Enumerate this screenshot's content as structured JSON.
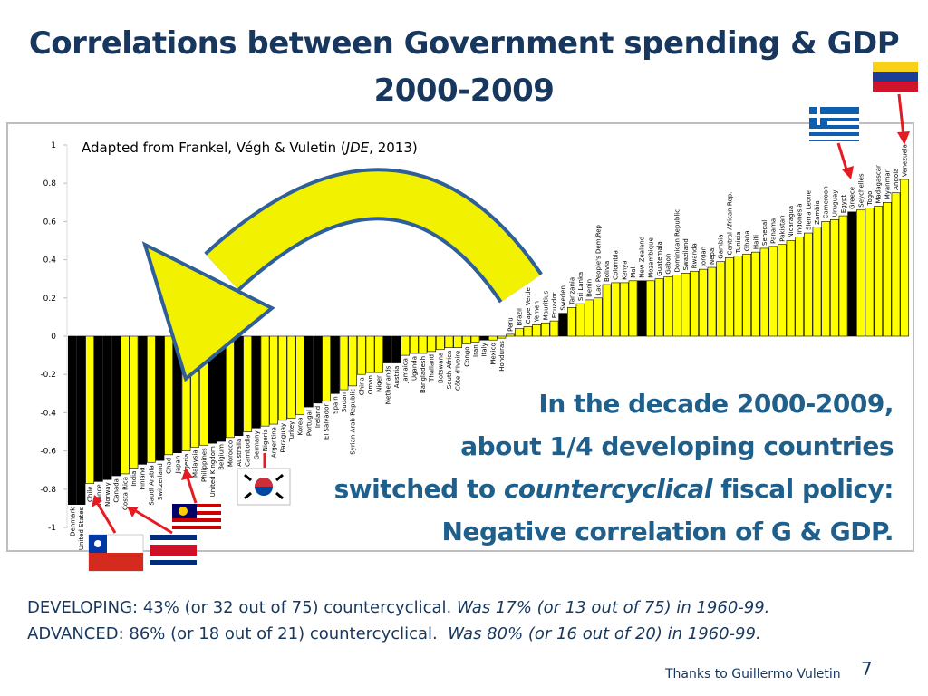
{
  "title": {
    "line1": "Correlations between Government spending & GDP",
    "line2": "2000-2009"
  },
  "source": {
    "pre": "Adapted from Frankel, Végh & Vuletin (",
    "em": "JDE",
    "post": ", 2013)"
  },
  "chart_data": {
    "type": "bar",
    "categories": [
      "Denmark",
      "United States",
      "Chile",
      "France",
      "Norway",
      "Canada",
      "Costa Rica",
      "India",
      "Finland",
      "Saudi Arabia",
      "Switzerland",
      "Chad",
      "Japan",
      "Algeria",
      "Malaysia",
      "Philippines",
      "United Kingdom",
      "Belgium",
      "Morocco",
      "Australia",
      "Cambodia",
      "Germany",
      "Nigeria",
      "Argentina",
      "Paraguay",
      "Turkey",
      "Korea",
      "Portugal",
      "Ireland",
      "El Salvador",
      "Spain",
      "Sudan",
      "Syrian Arab Republic",
      "China",
      "Oman",
      "Niger",
      "Netherlands",
      "Austria",
      "Jamaica",
      "Uganda",
      "Bangladesh",
      "Thailand",
      "Botswana",
      "South Africa",
      "Côte d'Ivoire",
      "Congo",
      "Iran",
      "Italy",
      "Mexico",
      "Honduras",
      "Peru",
      "Brazil",
      "Cape Verde",
      "Yemen",
      "Mauritius",
      "Ecuador",
      "Sweden",
      "Tanzania",
      "Sri Lanka",
      "Benin",
      "Lao People's Dem.Rep",
      "Bolivia",
      "Colombia",
      "Kenya",
      "Mali",
      "New Zealand",
      "Mozambique",
      "Guatemala",
      "Gabon",
      "Dominican Republic",
      "Swaziland",
      "Rwanda",
      "Jordan",
      "Nepal",
      "Gambia",
      "Central African Rep.",
      "Tunisia",
      "Ghana",
      "Haiti",
      "Senegal",
      "Panama",
      "Pakistan",
      "Nicaragua",
      "Indonesia",
      "Sierra Leone",
      "Zambia",
      "Cameroon",
      "Uruguay",
      "Egypt",
      "Greece",
      "Seychelles",
      "Togo",
      "Madagascar",
      "Myanmar",
      "Angola",
      "Venezuela"
    ],
    "values": [
      -0.88,
      -0.88,
      -0.77,
      -0.76,
      -0.75,
      -0.73,
      -0.72,
      -0.69,
      -0.67,
      -0.66,
      -0.65,
      -0.62,
      -0.61,
      -0.6,
      -0.58,
      -0.57,
      -0.56,
      -0.55,
      -0.53,
      -0.52,
      -0.5,
      -0.48,
      -0.47,
      -0.46,
      -0.44,
      -0.43,
      -0.41,
      -0.37,
      -0.35,
      -0.34,
      -0.3,
      -0.28,
      -0.26,
      -0.2,
      -0.19,
      -0.19,
      -0.14,
      -0.14,
      -0.1,
      -0.09,
      -0.09,
      -0.08,
      -0.07,
      -0.06,
      -0.06,
      -0.04,
      -0.03,
      -0.02,
      -0.02,
      -0.01,
      0.01,
      0.04,
      0.05,
      0.06,
      0.07,
      0.08,
      0.12,
      0.15,
      0.17,
      0.19,
      0.2,
      0.27,
      0.28,
      0.28,
      0.29,
      0.29,
      0.29,
      0.3,
      0.31,
      0.32,
      0.33,
      0.34,
      0.35,
      0.36,
      0.39,
      0.41,
      0.42,
      0.43,
      0.44,
      0.46,
      0.47,
      0.48,
      0.5,
      0.52,
      0.54,
      0.57,
      0.6,
      0.61,
      0.63,
      0.65,
      0.66,
      0.67,
      0.68,
      0.7,
      0.75,
      0.82
    ],
    "colors": [
      "#000000",
      "#000000",
      "#ffff00",
      "#000000",
      "#000000",
      "#000000",
      "#ffff00",
      "#ffff00",
      "#000000",
      "#ffff00",
      "#000000",
      "#ffff00",
      "#000000",
      "#ffff00",
      "#ffff00",
      "#ffff00",
      "#000000",
      "#000000",
      "#ffff00",
      "#000000",
      "#ffff00",
      "#000000",
      "#ffff00",
      "#ffff00",
      "#ffff00",
      "#ffff00",
      "#ffff00",
      "#000000",
      "#000000",
      "#ffff00",
      "#000000",
      "#ffff00",
      "#ffff00",
      "#ffff00",
      "#ffff00",
      "#ffff00",
      "#000000",
      "#000000",
      "#ffff00",
      "#ffff00",
      "#ffff00",
      "#ffff00",
      "#ffff00",
      "#ffff00",
      "#ffff00",
      "#ffff00",
      "#ffff00",
      "#000000",
      "#ffff00",
      "#ffff00",
      "#ffff00",
      "#ffff00",
      "#ffff00",
      "#ffff00",
      "#ffff00",
      "#ffff00",
      "#000000",
      "#ffff00",
      "#ffff00",
      "#ffff00",
      "#ffff00",
      "#ffff00",
      "#ffff00",
      "#ffff00",
      "#ffff00",
      "#000000",
      "#ffff00",
      "#ffff00",
      "#ffff00",
      "#ffff00",
      "#ffff00",
      "#ffff00",
      "#ffff00",
      "#ffff00",
      "#ffff00",
      "#ffff00",
      "#ffff00",
      "#ffff00",
      "#ffff00",
      "#ffff00",
      "#ffff00",
      "#ffff00",
      "#ffff00",
      "#ffff00",
      "#ffff00",
      "#ffff00",
      "#ffff00",
      "#ffff00",
      "#ffff00",
      "#000000",
      "#ffff00",
      "#ffff00",
      "#ffff00",
      "#ffff00",
      "#ffff00",
      "#ffff00"
    ],
    "ylim": [
      -1,
      1
    ],
    "yticks": [
      1,
      0.8,
      0.6,
      0.4,
      0.2,
      0,
      -0.2,
      -0.4,
      -0.6,
      -0.8,
      -1
    ]
  },
  "annotation": {
    "line1": "In the decade 2000-2009,",
    "line2": "about 1/4 developing countries",
    "line3_pre": "switched to",
    "line3_em": "countercyclical",
    "line3_post": "fiscal policy:",
    "line4": "Negative correlation of G & GDP."
  },
  "footer": {
    "developing": "DEVELOPING: 43% (or 32 out of 75) countercyclical.",
    "developing_em": "Was 17% (or 13 out of 75) in 1960-99.",
    "advanced": "ADVANCED: 86% (or 18 out of 21) countercyclical.",
    "advanced_em": "Was 80% (or 16 out of 20) in 1960-99."
  },
  "credit": "Thanks to Guillermo Vuletin",
  "page_number": "7"
}
